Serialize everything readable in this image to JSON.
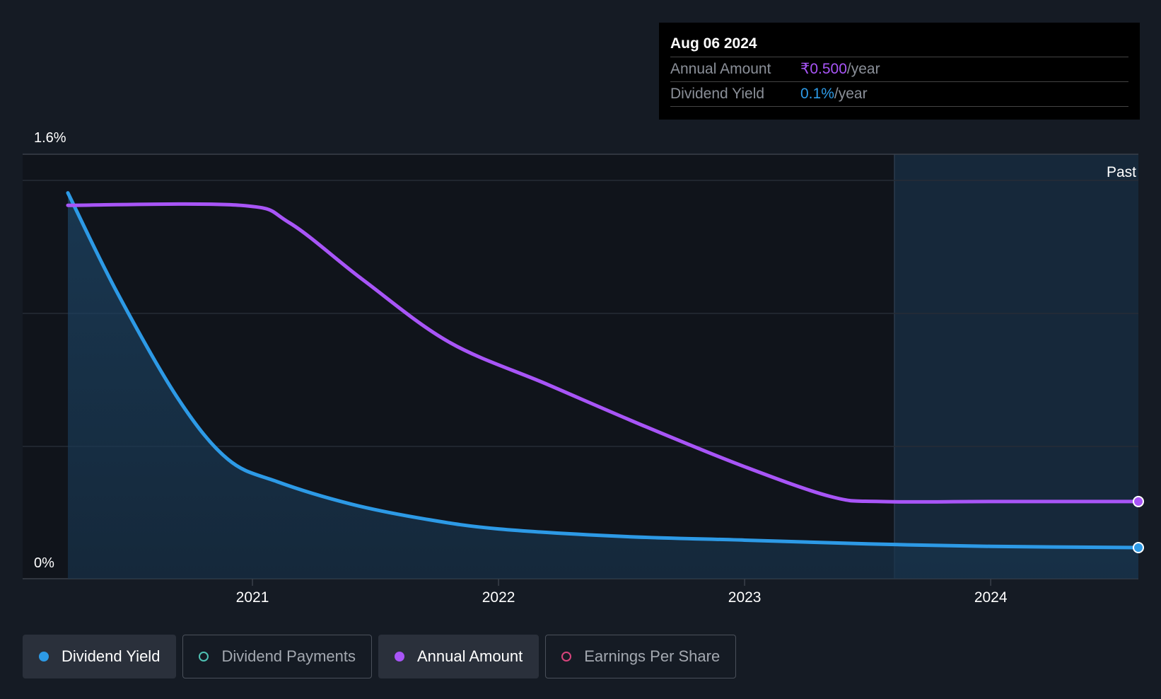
{
  "tooltip": {
    "date": "Aug 06 2024",
    "rows": [
      {
        "label": "Annual Amount",
        "value": "₹0.500",
        "unit": "/year"
      },
      {
        "label": "Dividend Yield",
        "value": "0.1%",
        "unit": "/year"
      }
    ]
  },
  "legend": [
    {
      "label": "Dividend Yield",
      "color": "#2d9ae6",
      "active": true
    },
    {
      "label": "Dividend Payments",
      "color": "#4fc2b4",
      "active": false
    },
    {
      "label": "Annual Amount",
      "color": "#a855f7",
      "active": true
    },
    {
      "label": "Earnings Per Share",
      "color": "#d8447c",
      "active": false
    }
  ],
  "chart_data": {
    "type": "line",
    "y_top_label": "1.6%",
    "y_bottom_label": "0%",
    "ylim": [
      0,
      1.6
    ],
    "xlim": [
      2020.25,
      2024.6
    ],
    "x_ticks": [
      {
        "label": "2021",
        "value": 2021
      },
      {
        "label": "2022",
        "value": 2022
      },
      {
        "label": "2023",
        "value": 2023
      },
      {
        "label": "2024",
        "value": 2024
      }
    ],
    "past_label": "Past",
    "past_start": 2023.6,
    "series": [
      {
        "name": "Dividend Yield",
        "color": "#2d9ae6",
        "area": true,
        "x": [
          2020.25,
          2020.45,
          2020.7,
          2020.9,
          2021.1,
          2021.4,
          2021.7,
          2022.0,
          2022.5,
          2023.0,
          2023.5,
          2024.0,
          2024.6
        ],
        "y": [
          1.55,
          1.15,
          0.72,
          0.48,
          0.39,
          0.3,
          0.24,
          0.2,
          0.17,
          0.155,
          0.14,
          0.13,
          0.125
        ]
      },
      {
        "name": "Annual Amount",
        "color": "#a855f7",
        "area": false,
        "x": [
          2020.25,
          2020.95,
          2021.15,
          2021.45,
          2021.8,
          2022.2,
          2022.6,
          2023.0,
          2023.35,
          2023.55,
          2024.0,
          2024.6
        ],
        "y": [
          1.5,
          1.5,
          1.43,
          1.2,
          0.95,
          0.78,
          0.61,
          0.45,
          0.33,
          0.31,
          0.31,
          0.31
        ]
      }
    ],
    "grid": true
  }
}
